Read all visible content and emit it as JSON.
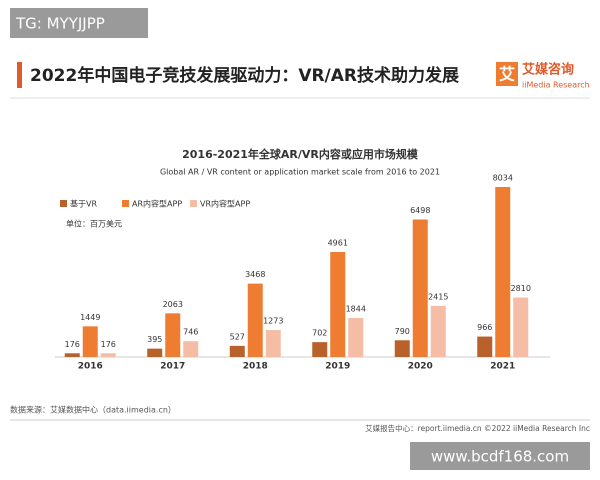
{
  "watermark": "TG: MYYJJPP",
  "header": {
    "title": "2022年中国电子竞技发展驱动力：VR/AR技术助力发展",
    "logo_mark": "艾",
    "logo_name": "艾媒咨询",
    "logo_sub": "iiMedia Research"
  },
  "chart_data": {
    "type": "bar",
    "title": "2016-2021年全球AR/VR内容或应用市场规模",
    "subtitle": "Global AR / VR content or application market scale from 2016 to 2021",
    "unit": "单位：百万美元",
    "categories": [
      "2016",
      "2017",
      "2018",
      "2019",
      "2020",
      "2021"
    ],
    "series": [
      {
        "name": "基于VR",
        "color": "#b8612a",
        "values": [
          176,
          395,
          527,
          702,
          790,
          966
        ]
      },
      {
        "name": "AR内容型APP",
        "color": "#ee7d31",
        "values": [
          1449,
          2063,
          3468,
          4961,
          6498,
          8034
        ]
      },
      {
        "name": "VR内容型APP",
        "color": "#f5bca6",
        "values": [
          176,
          746,
          1273,
          1844,
          2415,
          2810
        ]
      }
    ],
    "legend": "top-left"
  },
  "source": "数据来源：艾媒数据中心（data.iimedia.cn）",
  "footer": "艾媒报告中心：report.iimedia.cn  ©2022  iiMedia Research  Inc",
  "bottom_watermark": "www.bcdf168.com"
}
